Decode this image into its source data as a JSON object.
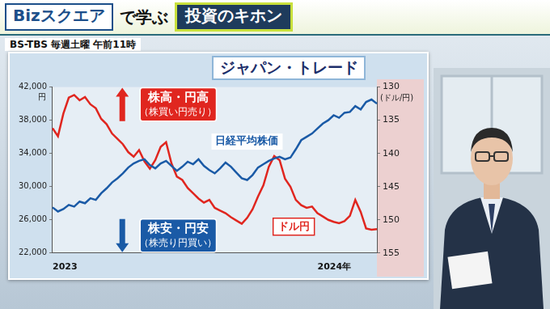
{
  "header": {
    "brand": "Bizスクエア",
    "tagline": "で学ぶ",
    "title": "投資のキホン",
    "schedule": "BS-TBS 毎週土曜 午前11時"
  },
  "chart_data": {
    "type": "line",
    "title": "ジャパン・トレード",
    "categories": [
      "2023",
      null,
      null,
      null,
      null,
      null,
      null,
      null,
      null,
      null,
      null,
      null,
      null,
      null,
      null,
      null,
      null,
      null,
      null,
      null,
      null,
      null,
      null,
      null,
      null,
      null,
      null,
      null,
      null,
      null,
      null,
      null,
      null,
      null,
      null,
      null,
      null,
      null,
      null,
      null,
      null,
      null,
      null,
      null,
      null,
      null,
      null,
      null,
      null,
      "2024年",
      null,
      null,
      null,
      null,
      null,
      null,
      null,
      null,
      null,
      null,
      null
    ],
    "series": [
      {
        "name": "日経平均株価",
        "color": "#1a5aa6",
        "axis": "y",
        "values": [
          27500,
          27000,
          27300,
          27800,
          27600,
          28200,
          28000,
          28600,
          28400,
          29200,
          29800,
          30500,
          31000,
          31600,
          32300,
          32800,
          33100,
          33300,
          32600,
          32200,
          32800,
          33100,
          32500,
          31900,
          32400,
          33000,
          32700,
          33300,
          32500,
          32000,
          31600,
          32200,
          32900,
          32400,
          31700,
          31000,
          30800,
          31400,
          32300,
          32700,
          33100,
          33400,
          33600,
          33300,
          33500,
          34500,
          35600,
          36000,
          36400,
          37000,
          37600,
          38000,
          38600,
          38300,
          38900,
          39000,
          39700,
          39300,
          40200,
          40500,
          40000
        ]
      },
      {
        "name": "ドル円",
        "color": "#e0261f",
        "axis": "y2",
        "values": [
          136.2,
          137.4,
          134.0,
          131.6,
          131.2,
          132.0,
          131.5,
          132.6,
          133.2,
          134.8,
          135.6,
          137.0,
          137.8,
          138.6,
          139.8,
          140.5,
          139.5,
          141.2,
          142.3,
          141.0,
          139.0,
          138.3,
          141.5,
          143.5,
          144.0,
          145.2,
          146.0,
          146.8,
          147.4,
          147.0,
          148.2,
          148.6,
          149.0,
          149.6,
          150.1,
          150.6,
          149.7,
          148.4,
          146.5,
          144.8,
          142.0,
          140.4,
          141.0,
          143.8,
          145.0,
          147.0,
          147.8,
          148.2,
          148.0,
          149.0,
          149.5,
          150.0,
          150.3,
          150.5,
          150.2,
          149.4,
          147.0,
          148.8,
          151.3,
          151.5,
          151.4
        ]
      }
    ],
    "ylim": [
      22000,
      42000
    ],
    "yticks": [
      {
        "value": 22000,
        "label": "22,000"
      },
      {
        "value": 26000,
        "label": "26,000"
      },
      {
        "value": 30000,
        "label": "30,000"
      },
      {
        "value": 34000,
        "label": "34,000"
      },
      {
        "value": 38000,
        "label": "38,000"
      },
      {
        "value": 42000,
        "label": "42,000"
      }
    ],
    "ylabel": "円",
    "y2lim": [
      155,
      130
    ],
    "y2ticks": [
      130,
      135,
      140,
      145,
      150,
      155
    ],
    "y2label": "(ドル/円)",
    "annotations": [
      "株高・円高",
      "（株買い円売り）",
      "株安・円安",
      "（株売り円買い）"
    ],
    "grid": false
  }
}
